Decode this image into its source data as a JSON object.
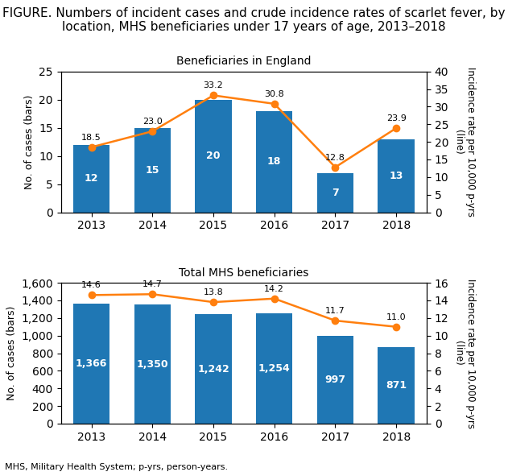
{
  "title": "FIGURE. Numbers of incident cases and crude incidence rates of scarlet fever, by location, MHS beneficiaries under 17 years of age, 2013–2018",
  "annotations": [
    "MHS, Military Health System; p-yrs, person-years."
  ],
  "chart_data": [
    {
      "type": "bar",
      "title": "Beneficiaries in England",
      "categories": [
        "2013",
        "2014",
        "2015",
        "2016",
        "2017",
        "2018"
      ],
      "series": [
        {
          "type": "bar",
          "values": [
            12,
            15,
            20,
            18,
            7,
            13
          ]
        },
        {
          "type": "line",
          "axis": "y2",
          "marker": "o",
          "values": [
            18.5,
            23.0,
            33.2,
            30.8,
            12.8,
            23.9
          ]
        }
      ],
      "ylim": [
        0,
        25
      ],
      "yticks": [
        0,
        5,
        10,
        15,
        20,
        25
      ],
      "y2lim": [
        0,
        40
      ],
      "y2ticks": [
        0,
        5,
        10,
        15,
        20,
        25,
        30,
        35,
        40
      ],
      "ylabel": "No. of cases (bars)",
      "y2label": "Incidence rate per 10,000 p-yrs\n(line)",
      "data_labels": true,
      "grid": false
    },
    {
      "type": "bar",
      "title": "Total MHS beneficiaries",
      "categories": [
        "2013",
        "2014",
        "2015",
        "2016",
        "2017",
        "2018"
      ],
      "series": [
        {
          "type": "bar",
          "values": [
            1366,
            1350,
            1242,
            1254,
            997,
            871
          ],
          "value_labels": [
            "1,366",
            "1,350",
            "1,242",
            "1,254",
            "997",
            "871"
          ]
        },
        {
          "type": "line",
          "axis": "y2",
          "marker": "o",
          "values": [
            14.6,
            14.7,
            13.8,
            14.2,
            11.7,
            11.0
          ]
        }
      ],
      "ylim": [
        0,
        1600
      ],
      "yticks": [
        0,
        200,
        400,
        600,
        800,
        {
          "value": 1000,
          "label": "1,000"
        },
        {
          "value": 1200,
          "label": "1,200"
        },
        {
          "value": 1400,
          "label": "1,400"
        },
        {
          "value": 1600,
          "label": "1,600"
        }
      ],
      "y2lim": [
        0,
        16
      ],
      "y2ticks": [
        0,
        2,
        4,
        6,
        8,
        10,
        12,
        14,
        16
      ],
      "ylabel": "No. of cases (bars)",
      "y2label": "Incidence rate per 10,000 p-yrs\n(line)",
      "data_labels": true,
      "grid": false
    }
  ]
}
